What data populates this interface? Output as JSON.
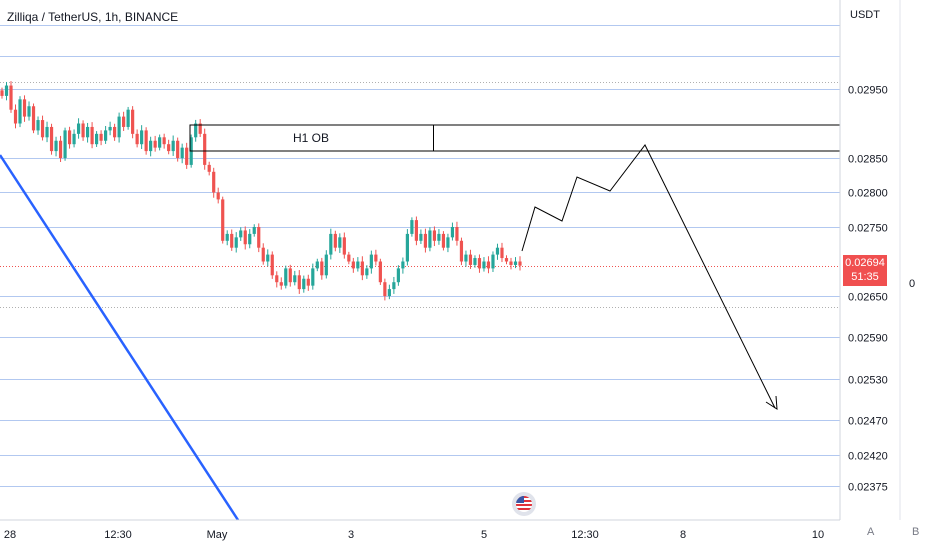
{
  "header": {
    "title": "Zilliqa / TetherUS, 1h, BINANCE",
    "currency": "USDT"
  },
  "price_tag": {
    "price": "0.02694",
    "countdown": "51:35"
  },
  "side_label": "0",
  "scale_buttons": {
    "a": "A",
    "b": "B"
  },
  "colors": {
    "up": "#26a69a",
    "down": "#ef5350",
    "grid": "#b2c8f0",
    "trendline": "#2962ff",
    "tag": "#f04f4f"
  },
  "chart_data": {
    "type": "candlestick",
    "title": "Zilliqa / TetherUS, 1h, BINANCE",
    "y_axis": {
      "ticks": [
        0.0295,
        0.0285,
        0.028,
        0.0275,
        0.0265,
        0.0259,
        0.0253,
        0.0247,
        0.0242,
        0.02375
      ],
      "tick_labels": [
        "0.02950",
        "0.02850",
        "0.02800",
        "0.02750",
        "0.02650",
        "0.02590",
        "0.02530",
        "0.02470",
        "0.02420",
        "0.02375"
      ],
      "range": [
        0.0234,
        0.0303
      ]
    },
    "x_axis": {
      "tick_labels": [
        "28",
        "12:30",
        "May",
        "3",
        "5",
        "12:30",
        "8",
        "10"
      ]
    },
    "last_price": 0.02694,
    "grid": true,
    "candles_close": [
      0.0294,
      0.02955,
      0.0292,
      0.029,
      0.02935,
      0.0291,
      0.02925,
      0.0289,
      0.02905,
      0.0288,
      0.02895,
      0.0286,
      0.02875,
      0.0285,
      0.0289,
      0.0287,
      0.02885,
      0.029,
      0.0288,
      0.02895,
      0.0287,
      0.02885,
      0.02875,
      0.0289,
      0.02895,
      0.0288,
      0.0291,
      0.02895,
      0.0292,
      0.02885,
      0.0287,
      0.0289,
      0.0286,
      0.02875,
      0.02865,
      0.0288,
      0.0287,
      0.0286,
      0.02875,
      0.0285,
      0.02865,
      0.0284,
      0.0288,
      0.029,
      0.02885,
      0.0284,
      0.0283,
      0.028,
      0.0279,
      0.0273,
      0.0274,
      0.0272,
      0.02735,
      0.02745,
      0.02725,
      0.0274,
      0.0275,
      0.0272,
      0.027,
      0.0271,
      0.0268,
      0.0267,
      0.02665,
      0.0269,
      0.0267,
      0.0268,
      0.0266,
      0.02675,
      0.02665,
      0.0269,
      0.027,
      0.0268,
      0.0271,
      0.0274,
      0.0272,
      0.02735,
      0.0271,
      0.027,
      0.0269,
      0.027,
      0.0268,
      0.0269,
      0.0271,
      0.027,
      0.0267,
      0.0265,
      0.0266,
      0.0267,
      0.0269,
      0.027,
      0.0274,
      0.0276,
      0.0273,
      0.0274,
      0.0272,
      0.02745,
      0.0273,
      0.0274,
      0.0272,
      0.02735,
      0.0275,
      0.0273,
      0.027,
      0.0271,
      0.02695,
      0.02705,
      0.0269,
      0.027,
      0.0269,
      0.0271,
      0.0272,
      0.02705,
      0.027,
      0.02695,
      0.027,
      0.02694
    ],
    "ob_zone": {
      "label": "H1 OB",
      "low": 0.02855,
      "high": 0.02893
    },
    "projection": [
      0.02715,
      0.02775,
      0.02755,
      0.02822,
      0.02802,
      0.0286,
      0.0249
    ],
    "trendline": [
      [
        0.0285,
        0.0234
      ]
    ]
  }
}
